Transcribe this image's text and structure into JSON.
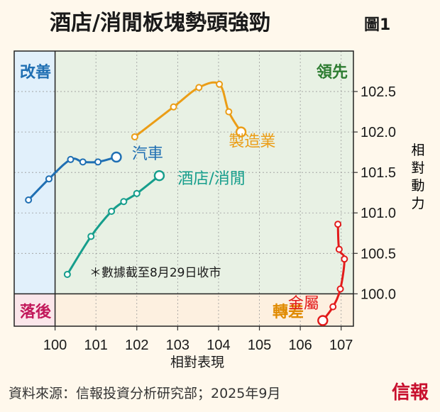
{
  "chart_data": {
    "type": "scatter",
    "title": "酒店/消閒板塊勢頭強勁",
    "figure_label": "圖1",
    "xlabel": "相對表現",
    "ylabel": "相對動力",
    "xlim": [
      99.0,
      107.3
    ],
    "ylim": [
      99.6,
      103.0
    ],
    "x_ticks": [
      "100",
      "101",
      "102",
      "103",
      "104",
      "105",
      "106",
      "107"
    ],
    "x_tick_values": [
      100,
      101,
      102,
      103,
      104,
      105,
      106,
      107
    ],
    "y_ticks": [
      "100.0",
      "100.5",
      "101.0",
      "101.5",
      "102.0",
      "102.5"
    ],
    "y_tick_values": [
      100.0,
      100.5,
      101.0,
      101.5,
      102.0,
      102.5
    ],
    "grid": true,
    "reference_x": 100,
    "reference_y": 100,
    "quadrants": {
      "top_left": {
        "label": "改善",
        "color": "#1f6fb3",
        "fill": "#e1f0fb"
      },
      "top_right": {
        "label": "領先",
        "color": "#2e7d32",
        "fill": "#e8f1e4"
      },
      "bottom_left": {
        "label": "落後",
        "color": "#c2185b",
        "fill": "#fbe6ea"
      },
      "bottom_right": {
        "label": "轉差",
        "color": "#e08a00",
        "fill": "#fdf0e0"
      }
    },
    "note": "＊數據截至8月29日收市",
    "series": [
      {
        "name": "汽車",
        "color": "#1f6fb3",
        "label_pos": [
          101.88,
          101.67
        ],
        "points": [
          {
            "x": 99.35,
            "y": 101.16
          },
          {
            "x": 99.85,
            "y": 101.42
          },
          {
            "x": 100.38,
            "y": 101.66
          },
          {
            "x": 100.68,
            "y": 101.63
          },
          {
            "x": 101.05,
            "y": 101.63
          },
          {
            "x": 101.5,
            "y": 101.69
          }
        ]
      },
      {
        "name": "酒店/消閒",
        "color": "#169e8c",
        "label_pos": [
          103.0,
          101.36
        ],
        "points": [
          {
            "x": 100.3,
            "y": 100.24
          },
          {
            "x": 100.88,
            "y": 100.71
          },
          {
            "x": 101.38,
            "y": 101.02
          },
          {
            "x": 101.68,
            "y": 101.14
          },
          {
            "x": 102.0,
            "y": 101.24
          },
          {
            "x": 102.55,
            "y": 101.46
          }
        ]
      },
      {
        "name": "製造業",
        "color": "#eb9d16",
        "label_pos": [
          104.25,
          101.82
        ],
        "points": [
          {
            "x": 101.95,
            "y": 101.94
          },
          {
            "x": 102.9,
            "y": 102.31
          },
          {
            "x": 103.52,
            "y": 102.55
          },
          {
            "x": 104.02,
            "y": 102.59
          },
          {
            "x": 104.25,
            "y": 102.25
          },
          {
            "x": 104.55,
            "y": 102.0
          }
        ]
      },
      {
        "name": "金屬",
        "color": "#e21b1b",
        "label_pos": [
          105.7,
          99.82
        ],
        "points": [
          {
            "x": 106.92,
            "y": 100.86
          },
          {
            "x": 106.95,
            "y": 100.55
          },
          {
            "x": 107.08,
            "y": 100.43
          },
          {
            "x": 106.98,
            "y": 100.06
          },
          {
            "x": 106.8,
            "y": 99.84
          },
          {
            "x": 106.55,
            "y": 99.67
          }
        ]
      }
    ],
    "source": "資料來源：信報投資分析研究部；2025年9月",
    "brand": "信報"
  }
}
